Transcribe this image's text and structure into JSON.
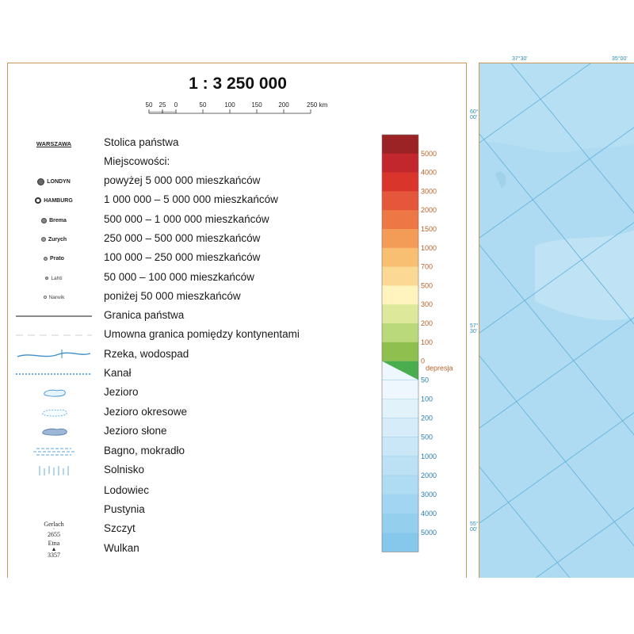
{
  "scale": {
    "title": "1 : 3 250 000",
    "ticks": [
      "50",
      "25",
      "0",
      "50",
      "100",
      "150",
      "200",
      "250 km"
    ]
  },
  "legend": {
    "capital_symbol": "WARSZAWA",
    "capital_label": "Stolica państwa",
    "settlements_header": "Miejscowości:",
    "cities": [
      {
        "name": "LONDYN",
        "label": "powyżej 5 000 000 mieszkańców"
      },
      {
        "name": "HAMBURG",
        "label": "1 000 000 – 5 000 000 mieszkańców"
      },
      {
        "name": "Brema",
        "label": "500 000 – 1 000 000 mieszkańców"
      },
      {
        "name": "Zurych",
        "label": "250 000 – 500 000 mieszkańców"
      },
      {
        "name": "Prato",
        "label": "100 000 – 250 000 mieszkańców"
      },
      {
        "name": "Lahti",
        "label": "50 000 – 100 000 mieszkańców"
      },
      {
        "name": "Narwik",
        "label": "poniżej 50 000 mieszkańców"
      }
    ],
    "lines": [
      {
        "label": "Granica państwa"
      },
      {
        "label": "Umowna granica pomiędzy kontynentami"
      },
      {
        "label": "Rzeka, wodospad"
      },
      {
        "label": "Kanał"
      },
      {
        "label": "Jezioro"
      },
      {
        "label": "Jezioro okresowe"
      },
      {
        "label": "Jezioro słone"
      },
      {
        "label": "Bagno, mokradło"
      },
      {
        "label": "Solnisko"
      },
      {
        "label": "Lodowiec"
      },
      {
        "label": "Pustynia"
      }
    ],
    "peak": {
      "name": "Gerlach",
      "height": "2655",
      "label": "Szczyt"
    },
    "volcano": {
      "name": "Etna",
      "height": "3357",
      "label": "Wulkan"
    }
  },
  "colorbar": {
    "land_colors": [
      "#9b2326",
      "#c1272d",
      "#d9352a",
      "#e4573a",
      "#ed7745",
      "#f39c58",
      "#f8be72",
      "#fbd994",
      "#fff4bd",
      "#dde89b",
      "#b9d97a",
      "#8fc04f"
    ],
    "land_ticks": [
      "5000",
      "4000",
      "3000",
      "2000",
      "1500",
      "1000",
      "700",
      "500",
      "300",
      "200",
      "100",
      "0"
    ],
    "land_tick_color": "#b5632a",
    "depression_label": "depresja",
    "depression_color": "#4aad4e",
    "sea_colors": [
      "#eef7fd",
      "#e2f2fb",
      "#d6edf9",
      "#c9e7f7",
      "#bce1f5",
      "#afdbf3",
      "#a2d5f1",
      "#94cfee",
      "#86c8ec"
    ],
    "sea_ticks": [
      "50",
      "100",
      "200",
      "500",
      "1000",
      "2000",
      "3000",
      "4000",
      "5000"
    ],
    "sea_tick_color": "#2a7ba8"
  },
  "map": {
    "top_coords": [
      "37°30'",
      "35°00'"
    ],
    "left_coords": [
      {
        "deg": "60°",
        "min": "00'"
      },
      {
        "deg": "57°",
        "min": "30'"
      },
      {
        "deg": "55°",
        "min": "00'"
      }
    ],
    "sea_color": "#b6dff3"
  }
}
